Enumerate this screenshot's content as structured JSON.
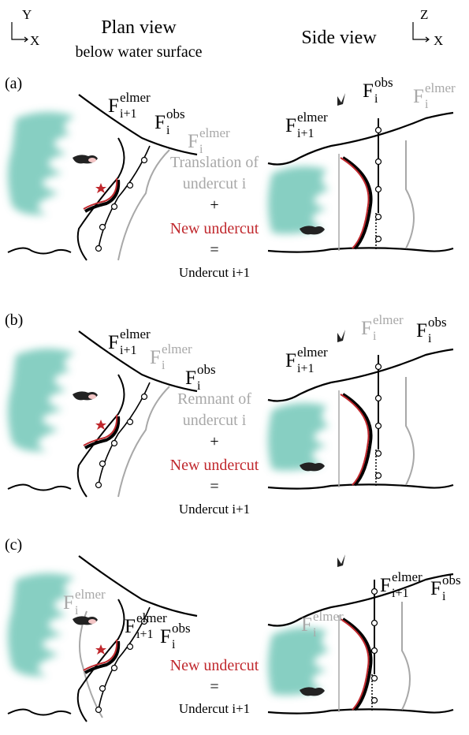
{
  "header": {
    "plan_axes": {
      "vertical": "Y",
      "horizontal": "X"
    },
    "plan_title": [
      "Plan view",
      "below water surface"
    ],
    "side_title": "Side view",
    "side_axes": {
      "vertical": "Z",
      "horizontal": "X"
    }
  },
  "panels": [
    {
      "label": "(a)",
      "plan_labels": [
        {
          "base": "F",
          "sub": "i+1",
          "sup": "elmer"
        },
        {
          "base": "F",
          "sub": "i",
          "sup": "obs"
        },
        {
          "base": "F",
          "sub": "i",
          "sup": "elmer"
        }
      ],
      "side_labels": [
        {
          "base": "F",
          "sub": "i+1",
          "sup": "elmer"
        },
        {
          "base": "F",
          "sub": "i",
          "sup": "obs"
        },
        {
          "base": "F",
          "sub": "i",
          "sup": "elmer"
        }
      ],
      "text": [
        "Translation of",
        "undercut i",
        "+",
        "New undercut",
        "=",
        "Undercut i+1"
      ]
    },
    {
      "label": "(b)",
      "plan_labels": [
        {
          "base": "F",
          "sub": "i+1",
          "sup": "elmer"
        },
        {
          "base": "F",
          "sub": "i",
          "sup": "elmer"
        },
        {
          "base": "F",
          "sub": "i",
          "sup": "obs"
        }
      ],
      "side_labels": [
        {
          "base": "F",
          "sub": "i+1",
          "sup": "elmer"
        },
        {
          "base": "F",
          "sub": "i",
          "sup": "elmer"
        },
        {
          "base": "F",
          "sub": "i",
          "sup": "obs"
        }
      ],
      "text": [
        "Remnant of",
        "undercut i",
        "+",
        "New undercut",
        "=",
        "Undercut i+1"
      ]
    },
    {
      "label": "(c)",
      "plan_labels": [
        {
          "base": "F",
          "sub": "i",
          "sup": "elmer"
        },
        {
          "base": "F",
          "sub": "i+1",
          "sup": "elmer"
        },
        {
          "base": "F",
          "sub": "i",
          "sup": "obs"
        }
      ],
      "side_labels": [
        {
          "base": "F",
          "sub": "i",
          "sup": "elmer"
        },
        {
          "base": "F",
          "sub": "i+1",
          "sup": "elmer"
        },
        {
          "base": "F",
          "sub": "i",
          "sup": "obs"
        }
      ],
      "text": [
        "New undercut",
        "=",
        "Undercut i+1"
      ]
    }
  ]
}
